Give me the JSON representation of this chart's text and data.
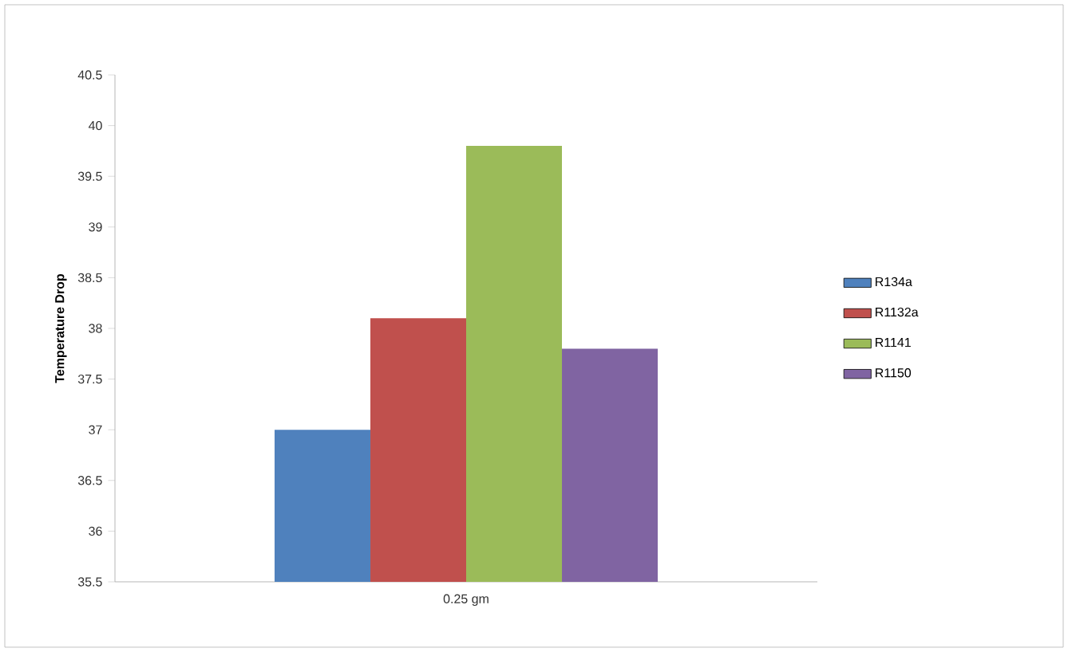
{
  "chart_data": {
    "type": "bar",
    "ylabel": "Temperature Drop",
    "categories": [
      "0.25 gm"
    ],
    "series": [
      {
        "name": "R134a",
        "color": "#4f81bd",
        "values": [
          37
        ]
      },
      {
        "name": "R1132a",
        "color": "#c0504d",
        "values": [
          38.1
        ]
      },
      {
        "name": "R1141",
        "color": "#9bbb59",
        "values": [
          39.8
        ]
      },
      {
        "name": "R1150",
        "color": "#8064a2",
        "values": [
          37.8
        ]
      }
    ],
    "ylim": [
      35.5,
      40.5
    ],
    "yticks": [
      35.5,
      36,
      36.5,
      37,
      37.5,
      38,
      38.5,
      39,
      39.5,
      40,
      40.5
    ],
    "legend": "right"
  }
}
